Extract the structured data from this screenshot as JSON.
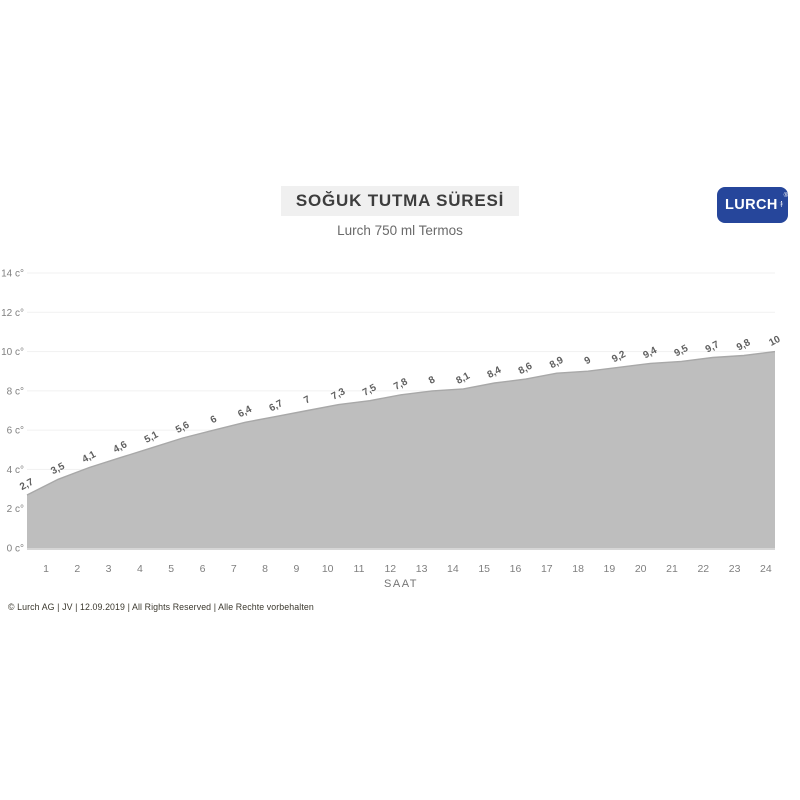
{
  "header": {
    "title": "SOĞUK TUTMA SÜRESİ",
    "subtitle": "Lurch 750 ml Termos",
    "logo": {
      "text": "LURCH",
      "registered_mark": "®",
      "bg_color": "#26469B"
    }
  },
  "chart_data": {
    "type": "area",
    "title": "SOĞUK TUTMA SÜRESİ",
    "subtitle": "Lurch 750 ml Termos",
    "xlabel": "SAAT",
    "ylabel": "",
    "ylim": [
      0,
      14
    ],
    "grid": true,
    "legend": "none",
    "values": [
      2.7,
      3.5,
      4.1,
      4.6,
      5.1,
      5.6,
      6,
      6.4,
      6.7,
      7,
      7.3,
      7.5,
      7.8,
      8,
      8.1,
      8.4,
      8.6,
      8.9,
      9,
      9.2,
      9.4,
      9.5,
      9.7,
      9.8,
      10
    ],
    "point_labels": [
      "2,7",
      "3,5",
      "4,1",
      "4,6",
      "5,1",
      "5,6",
      "6",
      "6,4",
      "6,7",
      "7",
      "7,3",
      "7,5",
      "7,8",
      "8",
      "8,1",
      "8,4",
      "8,6",
      "8,9",
      "9",
      "9,2",
      "9,4",
      "9,5",
      "9,7",
      "9,8",
      "10"
    ],
    "xtick_labels": [
      "1",
      "2",
      "3",
      "4",
      "5",
      "6",
      "7",
      "8",
      "9",
      "10",
      "11",
      "12",
      "13",
      "14",
      "15",
      "16",
      "17",
      "18",
      "19",
      "20",
      "21",
      "22",
      "23",
      "24"
    ],
    "ytick_values": [
      0,
      2,
      4,
      6,
      8,
      10,
      12,
      14
    ],
    "ytick_labels": [
      "0 c°",
      "2 c°",
      "4 c°",
      "6 c°",
      "8 c°",
      "10 c°",
      "12 c°",
      "14 c°"
    ],
    "colors": {
      "area_fill": "#BEBEBE",
      "area_stroke": "#A8A8A8",
      "grid_line": "#F1F1F1",
      "axis_line": "#D6D6D6",
      "tick_text": "#7F7F7F",
      "xlabel_text": "#757575",
      "data_label_text": "#5F5F5F"
    }
  },
  "footer": {
    "text": "© Lurch AG | JV | 12.09.2019 | All Rights Reserved | Alle Rechte vorbehalten"
  }
}
